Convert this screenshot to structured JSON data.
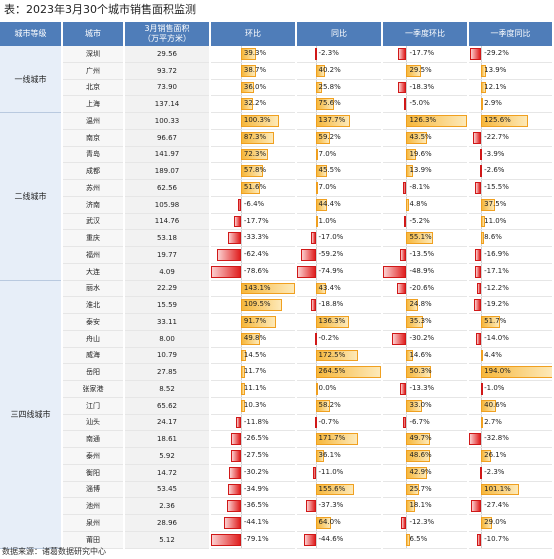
{
  "title": "表：2023年3月30个城市销售面积监测",
  "footer": "数据来源：诸葛数据研究中心",
  "headers": [
    "城市等级",
    "城市",
    "3月销售面积\n（万平方米）",
    "环比",
    "同比",
    "一季度环比",
    "一季度同比"
  ],
  "tiers": [
    {
      "name": "一线城市",
      "rows": [
        {
          "city": "深圳",
          "area": "29.56",
          "hb": 39.3,
          "tb": -2.3,
          "qhb": -17.7,
          "qtb": -29.2
        },
        {
          "city": "广州",
          "area": "93.72",
          "hb": 38.7,
          "tb": 40.2,
          "qhb": 29.5,
          "qtb": 13.9
        },
        {
          "city": "北京",
          "area": "73.90",
          "hb": 36.0,
          "tb": 25.8,
          "qhb": -18.3,
          "qtb": 12.1
        },
        {
          "city": "上海",
          "area": "137.14",
          "hb": 32.2,
          "tb": 75.6,
          "qhb": -5.0,
          "qtb": 2.9
        }
      ]
    },
    {
      "name": "二线城市",
      "rows": [
        {
          "city": "温州",
          "area": "100.33",
          "hb": 100.3,
          "tb": 137.7,
          "qhb": 126.3,
          "qtb": 125.6
        },
        {
          "city": "南京",
          "area": "96.67",
          "hb": 87.3,
          "tb": 59.2,
          "qhb": 43.5,
          "qtb": -22.7
        },
        {
          "city": "青岛",
          "area": "141.97",
          "hb": 72.3,
          "tb": 7.0,
          "qhb": 19.6,
          "qtb": -3.9
        },
        {
          "city": "成都",
          "area": "189.07",
          "hb": 57.8,
          "tb": 45.5,
          "qhb": 13.9,
          "qtb": -2.6
        },
        {
          "city": "苏州",
          "area": "62.56",
          "hb": 51.6,
          "tb": 7.0,
          "qhb": -8.1,
          "qtb": -15.5
        },
        {
          "city": "济南",
          "area": "105.98",
          "hb": -6.4,
          "tb": 44.4,
          "qhb": 4.8,
          "qtb": 37.5
        },
        {
          "city": "武汉",
          "area": "114.76",
          "hb": -17.7,
          "tb": 1.0,
          "qhb": -5.2,
          "qtb": 11.0
        },
        {
          "city": "重庆",
          "area": "53.18",
          "hb": -33.3,
          "tb": -17.0,
          "qhb": 55.1,
          "qtb": 8.6
        },
        {
          "city": "福州",
          "area": "19.77",
          "hb": -62.4,
          "tb": -59.2,
          "qhb": -13.5,
          "qtb": -16.9
        },
        {
          "city": "大连",
          "area": "4.09",
          "hb": -78.6,
          "tb": -74.9,
          "qhb": -48.9,
          "qtb": -17.1
        }
      ]
    },
    {
      "name": "三四线城市",
      "rows": [
        {
          "city": "丽水",
          "area": "22.29",
          "hb": 143.1,
          "tb": 43.4,
          "qhb": -20.6,
          "qtb": -12.2
        },
        {
          "city": "淮北",
          "area": "15.59",
          "hb": 109.5,
          "tb": -18.8,
          "qhb": 24.8,
          "qtb": -19.2
        },
        {
          "city": "泰安",
          "area": "33.11",
          "hb": 91.7,
          "tb": 136.3,
          "qhb": 35.3,
          "qtb": 51.7
        },
        {
          "city": "舟山",
          "area": "8.00",
          "hb": 49.8,
          "tb": -0.2,
          "qhb": -30.2,
          "qtb": -14.0
        },
        {
          "city": "威海",
          "area": "10.79",
          "hb": 14.5,
          "tb": 172.5,
          "qhb": 14.6,
          "qtb": 4.4
        },
        {
          "city": "岳阳",
          "area": "27.85",
          "hb": 11.7,
          "tb": 264.5,
          "qhb": 50.3,
          "qtb": 194.0
        },
        {
          "city": "张家港",
          "area": "8.52",
          "hb": 11.1,
          "tb": 0.0,
          "qhb": -13.3,
          "qtb": -1.0
        },
        {
          "city": "江门",
          "area": "65.62",
          "hb": 10.3,
          "tb": 58.2,
          "qhb": 33.0,
          "qtb": 40.6
        },
        {
          "city": "汕头",
          "area": "24.17",
          "hb": -11.8,
          "tb": -0.7,
          "qhb": -6.7,
          "qtb": 2.7
        },
        {
          "city": "南通",
          "area": "18.61",
          "hb": -26.5,
          "tb": 171.7,
          "qhb": 49.7,
          "qtb": -32.8
        },
        {
          "city": "泰州",
          "area": "5.92",
          "hb": -27.5,
          "tb": 36.1,
          "qhb": 48.6,
          "qtb": 26.1
        },
        {
          "city": "衡阳",
          "area": "14.72",
          "hb": -30.2,
          "tb": -11.0,
          "qhb": 42.9,
          "qtb": -2.3
        },
        {
          "city": "淄博",
          "area": "53.45",
          "hb": -34.9,
          "tb": 155.6,
          "qhb": 25.7,
          "qtb": 101.1
        },
        {
          "city": "池州",
          "area": "2.36",
          "hb": -36.5,
          "tb": -37.3,
          "qhb": 18.1,
          "qtb": -27.4
        },
        {
          "city": "泉州",
          "area": "28.96",
          "hb": -44.1,
          "tb": 64.0,
          "qhb": -12.3,
          "qtb": 29.0
        },
        {
          "city": "莆田",
          "area": "5.12",
          "hb": -79.1,
          "tb": -44.6,
          "qhb": 6.5,
          "qtb": -10.7
        }
      ]
    }
  ],
  "colors": {
    "header": "#4f7db9",
    "positive": "#f6b73c",
    "negative": "#e02020"
  }
}
